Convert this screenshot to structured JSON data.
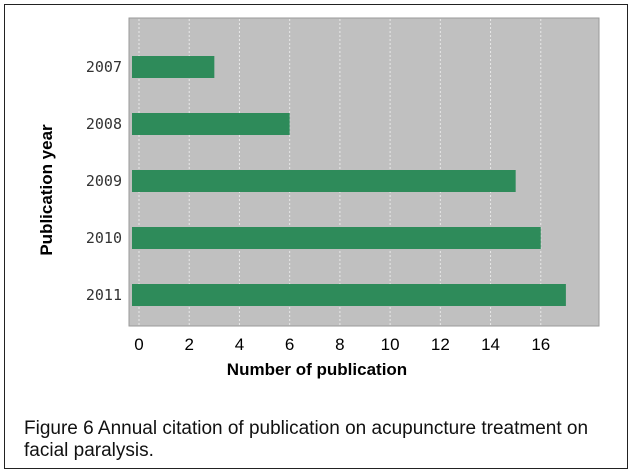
{
  "chart_data": {
    "type": "bar",
    "orientation": "horizontal",
    "categories": [
      "2007",
      "2008",
      "2009",
      "2010",
      "2011"
    ],
    "values": [
      3,
      6,
      15,
      16,
      17
    ],
    "xlabel": "Number of publication",
    "ylabel": "Publication year",
    "xlim": [
      0,
      18
    ],
    "xticks": [
      0,
      2,
      4,
      6,
      8,
      10,
      12,
      14,
      16
    ],
    "grid": true,
    "bar_color": "#2e8b5a",
    "plot_background": "#c0c0c0"
  },
  "caption": "Figure 6    Annual citation of publication on acupuncture treatment on facial paralysis."
}
